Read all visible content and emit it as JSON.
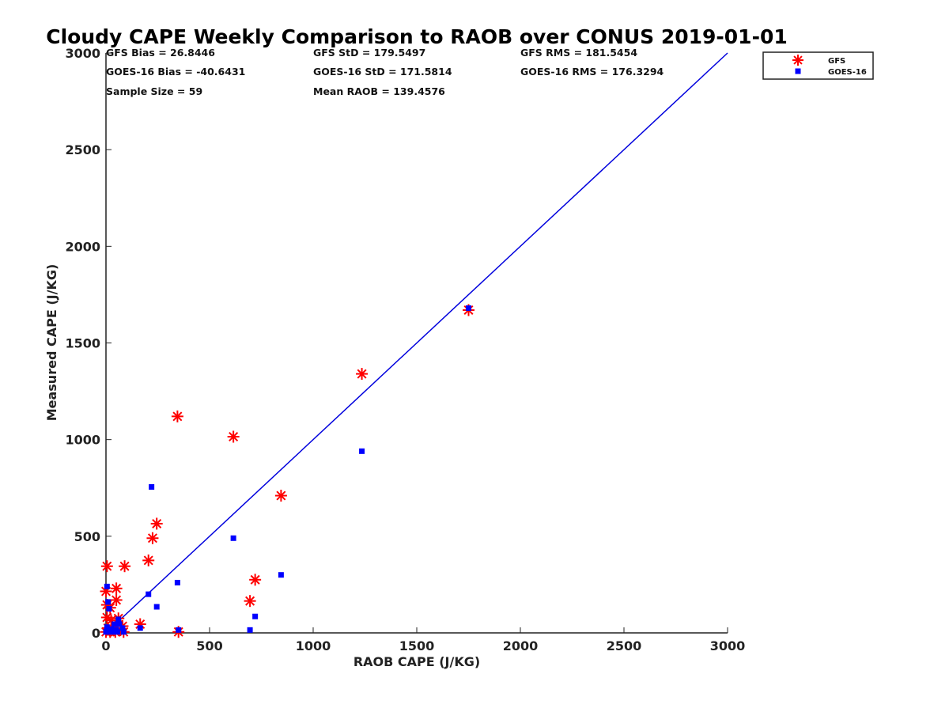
{
  "chart_data": {
    "type": "scatter",
    "title": "Cloudy CAPE Weekly Comparison to RAOB over CONUS 2019-01-01",
    "xlabel": "RAOB CAPE (J/KG)",
    "ylabel": "Measured CAPE (J/KG)",
    "xlim": [
      0,
      3000
    ],
    "ylim": [
      0,
      3000
    ],
    "xticks": [
      "0",
      "500",
      "1000",
      "1500",
      "2000",
      "2500",
      "3000"
    ],
    "yticks": [
      "0",
      "500",
      "1000",
      "1500",
      "2000",
      "2500",
      "3000"
    ],
    "grid": false,
    "legend_position": "top-right",
    "stats": [
      [
        "GFS Bias = 26.8446",
        "GFS StD = 179.5497",
        "GFS RMS = 181.5454"
      ],
      [
        "GOES-16 Bias = -40.6431",
        "GOES-16 StD = 171.5814",
        "GOES-16 RMS = 176.3294"
      ],
      [
        "Sample Size = 59",
        "Mean RAOB = 139.4576",
        ""
      ]
    ],
    "one_to_one_line": {
      "x": [
        0,
        3000
      ],
      "y": [
        0,
        3000
      ],
      "color": "#0000dd"
    },
    "series": [
      {
        "name": "GFS",
        "marker": "asterisk",
        "color": "#ff0000",
        "points": [
          [
            1750,
            1670
          ],
          [
            1235,
            1340
          ],
          [
            345,
            1120
          ],
          [
            615,
            1015
          ],
          [
            845,
            710
          ],
          [
            245,
            565
          ],
          [
            225,
            490
          ],
          [
            205,
            375
          ],
          [
            5,
            345
          ],
          [
            90,
            345
          ],
          [
            720,
            275
          ],
          [
            50,
            230
          ],
          [
            0,
            215
          ],
          [
            695,
            165
          ],
          [
            50,
            170
          ],
          [
            5,
            145
          ],
          [
            20,
            130
          ],
          [
            5,
            80
          ],
          [
            60,
            75
          ],
          [
            25,
            65
          ],
          [
            165,
            45
          ],
          [
            80,
            35
          ],
          [
            10,
            25
          ],
          [
            40,
            20
          ],
          [
            70,
            15
          ],
          [
            0,
            5
          ],
          [
            20,
            5
          ],
          [
            45,
            5
          ],
          [
            85,
            5
          ],
          [
            350,
            5
          ]
        ]
      },
      {
        "name": "GOES-16",
        "marker": "square",
        "color": "#0000ff",
        "points": [
          [
            1750,
            1680
          ],
          [
            1235,
            940
          ],
          [
            220,
            755
          ],
          [
            615,
            490
          ],
          [
            845,
            300
          ],
          [
            345,
            260
          ],
          [
            205,
            200
          ],
          [
            5,
            240
          ],
          [
            245,
            135
          ],
          [
            10,
            160
          ],
          [
            15,
            125
          ],
          [
            720,
            85
          ],
          [
            60,
            70
          ],
          [
            40,
            45
          ],
          [
            65,
            45
          ],
          [
            165,
            25
          ],
          [
            80,
            25
          ],
          [
            5,
            30
          ],
          [
            25,
            20
          ],
          [
            50,
            15
          ],
          [
            695,
            15
          ],
          [
            350,
            15
          ],
          [
            0,
            5
          ],
          [
            15,
            5
          ],
          [
            35,
            5
          ],
          [
            55,
            5
          ],
          [
            85,
            5
          ],
          [
            10,
            10
          ],
          [
            30,
            12
          ]
        ]
      }
    ]
  }
}
